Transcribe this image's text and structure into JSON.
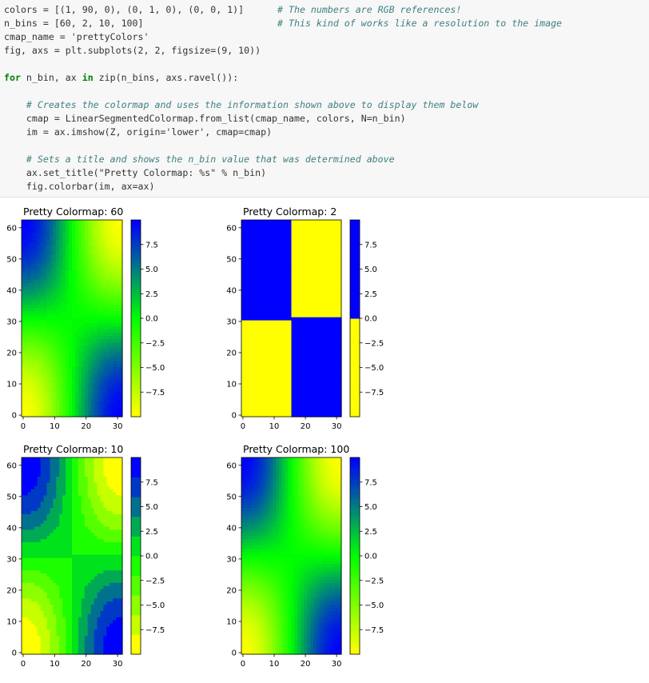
{
  "code": {
    "line1_a": "colors = [(1, 90, 0), (0, 1, 0), (0, 0, 1)]",
    "line1_comment": "# The numbers are RGB references!",
    "line2_a": "n_bins = [60, 2, 10, 100]",
    "line2_comment": "# This kind of works like a resolution to the image",
    "line3": "cmap_name = 'prettyColors'",
    "line4": "fig, axs = plt.subplots(2, 2, figsize=(9, 10))",
    "line6": "for n_bin, ax in zip(n_bins, axs.ravel()):",
    "line8_comment": "# Creates the colormap and uses the information shown above to display them below",
    "line9": "cmap = LinearSegmentedColormap.from_list(cmap_name, colors, N=n_bin)",
    "line10": "im = ax.imshow(Z, origin='lower', cmap=cmap)",
    "line12_comment": "# Sets a title and shows the n_bin value that was determined above",
    "line13": "ax.set_title(\"Pretty Colormap: %s\" % n_bin)",
    "line14": "fig.colorbar(im, ax=ax)"
  },
  "chart_data": [
    {
      "type": "heatmap",
      "title": "Pretty Colormap: 60",
      "n_bins": 60,
      "colormap_colors": [
        "#ffff00",
        "#00ff00",
        "#0000ff"
      ],
      "x_ticks": [
        "0",
        "10",
        "20",
        "30"
      ],
      "y_ticks": [
        "0",
        "10",
        "20",
        "30",
        "40",
        "50",
        "60"
      ],
      "xlim": [
        0,
        32
      ],
      "ylim": [
        0,
        63
      ],
      "colorbar_ticks": [
        "7.5",
        "5.0",
        "2.5",
        "0.0",
        "−2.5",
        "−5.0",
        "−7.5"
      ],
      "colorbar_range": [
        -10,
        10
      ]
    },
    {
      "type": "heatmap",
      "title": "Pretty Colormap: 2",
      "n_bins": 2,
      "colormap_colors": [
        "#ffff00",
        "#00ff00",
        "#0000ff"
      ],
      "x_ticks": [
        "0",
        "10",
        "20",
        "30"
      ],
      "y_ticks": [
        "0",
        "10",
        "20",
        "30",
        "40",
        "50",
        "60"
      ],
      "xlim": [
        0,
        32
      ],
      "ylim": [
        0,
        63
      ],
      "colorbar_ticks": [
        "7.5",
        "5.0",
        "2.5",
        "0.0",
        "−2.5",
        "−5.0",
        "−7.5"
      ],
      "colorbar_range": [
        -10,
        10
      ]
    },
    {
      "type": "heatmap",
      "title": "Pretty Colormap: 10",
      "n_bins": 10,
      "colormap_colors": [
        "#ffff00",
        "#00ff00",
        "#0000ff"
      ],
      "x_ticks": [
        "0",
        "10",
        "20",
        "30"
      ],
      "y_ticks": [
        "0",
        "10",
        "20",
        "30",
        "40",
        "50",
        "60"
      ],
      "xlim": [
        0,
        32
      ],
      "ylim": [
        0,
        63
      ],
      "colorbar_ticks": [
        "7.5",
        "5.0",
        "2.5",
        "0.0",
        "−2.5",
        "−5.0",
        "−7.5"
      ],
      "colorbar_range": [
        -10,
        10
      ]
    },
    {
      "type": "heatmap",
      "title": "Pretty Colormap: 100",
      "n_bins": 100,
      "colormap_colors": [
        "#ffff00",
        "#00ff00",
        "#0000ff"
      ],
      "x_ticks": [
        "0",
        "10",
        "20",
        "30"
      ],
      "y_ticks": [
        "0",
        "10",
        "20",
        "30",
        "40",
        "50",
        "60"
      ],
      "xlim": [
        0,
        32
      ],
      "ylim": [
        0,
        63
      ],
      "colorbar_ticks": [
        "7.5",
        "5.0",
        "2.5",
        "0.0",
        "−2.5",
        "−5.0",
        "−7.5"
      ],
      "colorbar_range": [
        -10,
        10
      ]
    }
  ]
}
